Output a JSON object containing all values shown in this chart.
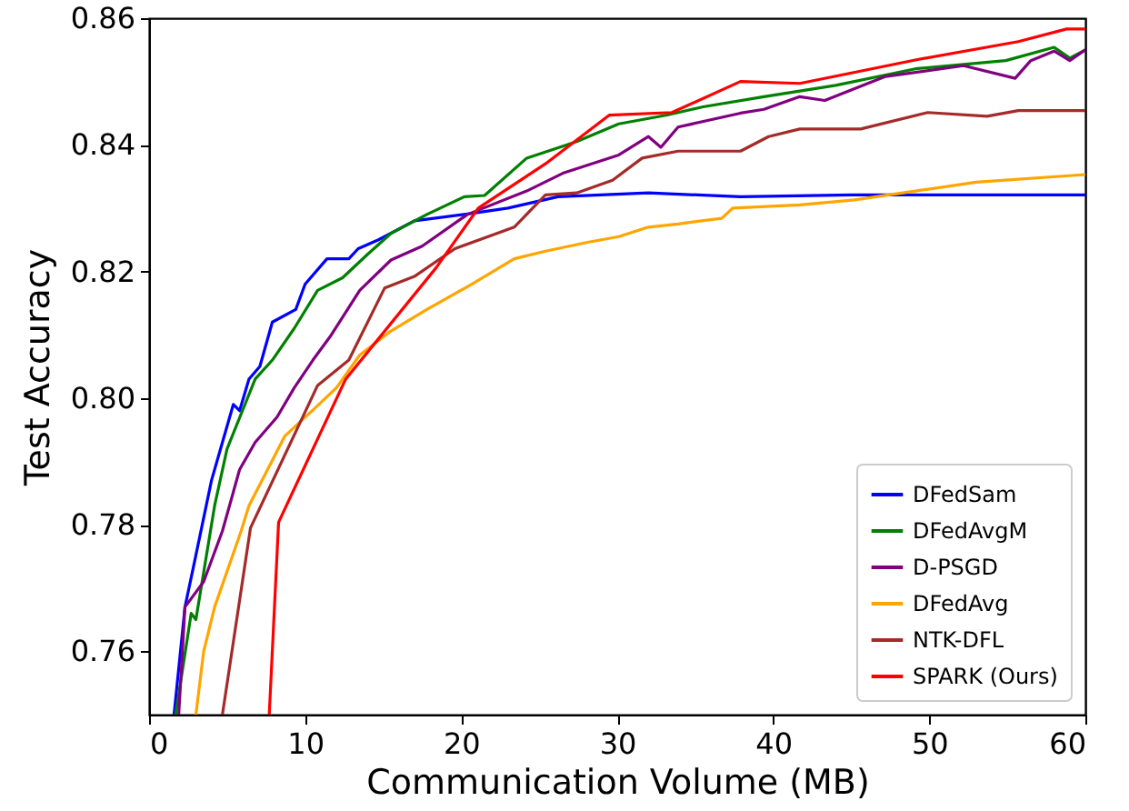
{
  "chart_data": {
    "type": "line",
    "xlabel": "Communication Volume (MB)",
    "ylabel": "Test Accuracy",
    "xlim": [
      0,
      60
    ],
    "xticks": [
      0,
      10,
      20,
      30,
      40,
      50,
      60
    ],
    "ylim": [
      0.75,
      0.86
    ],
    "yticks": [
      0.76,
      0.78,
      {
        "value": 0.8,
        "label": "0.80"
      },
      0.82,
      0.84,
      0.86
    ],
    "grid": false,
    "legend": "bottom right",
    "line_style": "solid",
    "series": [
      {
        "name": "DFedSam",
        "color": "#0000ff",
        "x": [
          1.6,
          2.3,
          2.9,
          4.0,
          5.4,
          5.8,
          6.4,
          7.1,
          7.9,
          9.4,
          10.0,
          11.4,
          12.8,
          13.4,
          14.7,
          17.0,
          20.2,
          23.0,
          26.2,
          32.0,
          37.9,
          45,
          52,
          60
        ],
        "values": [
          0.75,
          0.767,
          0.774,
          0.787,
          0.799,
          0.798,
          0.803,
          0.805,
          0.812,
          0.814,
          0.818,
          0.822,
          0.822,
          0.8236,
          0.825,
          0.828,
          0.829,
          0.83,
          0.8318,
          0.8324,
          0.8318,
          0.8321,
          0.8321,
          0.8321
        ]
      },
      {
        "name": "DFedAvgM",
        "color": "#008000",
        "x": [
          1.7,
          2.7,
          3.0,
          4.2,
          5.0,
          6.8,
          7.9,
          9.3,
          10.8,
          12.4,
          14.0,
          15.5,
          17.8,
          20.2,
          21.5,
          24.2,
          27.4,
          30.1,
          33.2,
          35.5,
          39.4,
          44,
          49.1,
          54.9,
          58,
          59,
          60
        ],
        "values": [
          0.75,
          0.766,
          0.765,
          0.783,
          0.792,
          0.803,
          0.806,
          0.811,
          0.817,
          0.819,
          0.8227,
          0.826,
          0.829,
          0.8318,
          0.832,
          0.8379,
          0.8405,
          0.8433,
          0.8447,
          0.846,
          0.8476,
          0.8494,
          0.852,
          0.8533,
          0.8554,
          0.8537,
          0.855
        ]
      },
      {
        "name": "D-PSGD",
        "color": "#800080",
        "x": [
          1.9,
          2.3,
          3.5,
          4.7,
          5.8,
          6.8,
          8.2,
          9.3,
          10.5,
          11.6,
          13.5,
          15.5,
          17.5,
          20.4,
          24.2,
          26.6,
          30.1,
          32.0,
          32.8,
          33.9,
          37.9,
          39.4,
          41.7,
          43.3,
          47.2,
          52.2,
          55.5,
          56.5,
          58,
          59,
          60
        ],
        "values": [
          0.75,
          0.767,
          0.771,
          0.779,
          0.7887,
          0.793,
          0.797,
          0.8016,
          0.806,
          0.8097,
          0.817,
          0.8218,
          0.824,
          0.829,
          0.8327,
          0.8356,
          0.8384,
          0.8413,
          0.8396,
          0.8428,
          0.845,
          0.8456,
          0.8476,
          0.847,
          0.8508,
          0.8525,
          0.8505,
          0.8533,
          0.8548,
          0.8533,
          0.855
        ]
      },
      {
        "name": "DFedAvg",
        "color": "#ffa500",
        "x": [
          3.0,
          3.5,
          4.2,
          5.9,
          6.4,
          8.7,
          10.8,
          12.0,
          13.5,
          15.5,
          17.8,
          20.7,
          23.4,
          25.4,
          28.1,
          30.1,
          32.0,
          33.9,
          36.7,
          37.4,
          41.7,
          45.2,
          49.1,
          53,
          60
        ],
        "values": [
          0.75,
          0.76,
          0.767,
          0.779,
          0.783,
          0.794,
          0.7988,
          0.8016,
          0.8068,
          0.8106,
          0.814,
          0.818,
          0.822,
          0.8232,
          0.8246,
          0.8255,
          0.827,
          0.8275,
          0.8284,
          0.83,
          0.8305,
          0.8313,
          0.8327,
          0.8341,
          0.8353
        ]
      },
      {
        "name": "NTK-DFL",
        "color": "#a52a2a",
        "x": [
          4.7,
          6.5,
          10.8,
          12.8,
          15.1,
          17.0,
          19.6,
          23.4,
          25.4,
          27.4,
          29.7,
          31.6,
          33.9,
          37.9,
          39.7,
          41.7,
          45.6,
          49.9,
          53.7,
          55.7,
          60
        ],
        "values": [
          0.75,
          0.7795,
          0.802,
          0.806,
          0.8174,
          0.8192,
          0.8236,
          0.827,
          0.8321,
          0.8324,
          0.8344,
          0.8379,
          0.839,
          0.839,
          0.8413,
          0.8425,
          0.8425,
          0.8451,
          0.8445,
          0.8454,
          0.8454
        ]
      },
      {
        "name": "SPARK (Ours)",
        "color": "#ff0000",
        "x": [
          7.7,
          8.3,
          12.6,
          18.4,
          21.1,
          25.4,
          29.5,
          33.5,
          37.9,
          41.7,
          49.1,
          55.7,
          58.8,
          60
        ],
        "values": [
          0.75,
          0.7804,
          0.803,
          0.8206,
          0.83,
          0.837,
          0.8447,
          0.8451,
          0.85,
          0.8497,
          0.8534,
          0.8563,
          0.8583,
          0.8583
        ]
      }
    ]
  }
}
